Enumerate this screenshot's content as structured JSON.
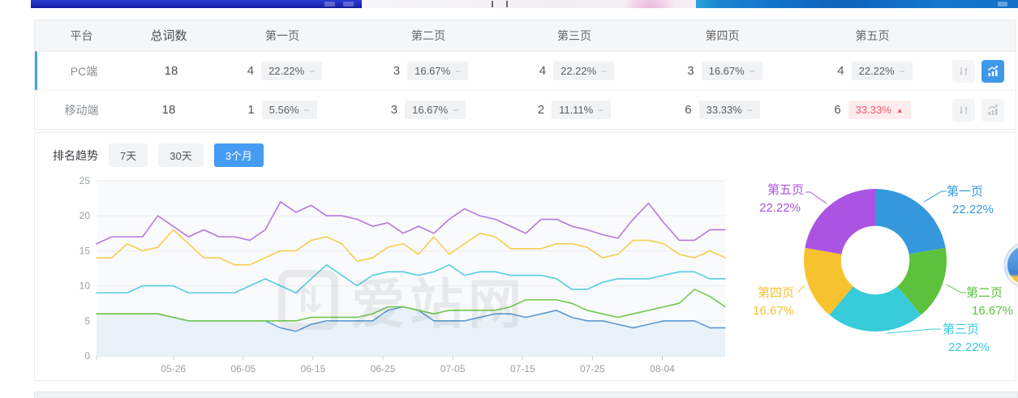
{
  "colors": {
    "accent_blue": "#3f97ea",
    "tab_active_blue": "#469cf3",
    "selected_row_border": "#49a2ee",
    "up_red": "#f4586a",
    "badge_gray_bg": "#f1f2f4",
    "badge_red_bg": "#fdecee"
  },
  "table": {
    "headers": [
      "平台",
      "总词数",
      "第一页",
      "第二页",
      "第三页",
      "第四页",
      "第五页"
    ],
    "icons": {
      "flat_glyph": "−",
      "up_glyph": "▲"
    },
    "rows": [
      {
        "platform": "PC端",
        "total": "18",
        "selected": true,
        "trend_active": true,
        "pages": [
          {
            "count": "4",
            "pct": "22.22%",
            "trend": "flat"
          },
          {
            "count": "3",
            "pct": "16.67%",
            "trend": "flat"
          },
          {
            "count": "4",
            "pct": "22.22%",
            "trend": "flat"
          },
          {
            "count": "3",
            "pct": "16.67%",
            "trend": "flat"
          },
          {
            "count": "4",
            "pct": "22.22%",
            "trend": "flat"
          }
        ]
      },
      {
        "platform": "移动端",
        "total": "18",
        "selected": false,
        "trend_active": false,
        "pages": [
          {
            "count": "1",
            "pct": "5.56%",
            "trend": "flat"
          },
          {
            "count": "3",
            "pct": "16.67%",
            "trend": "flat"
          },
          {
            "count": "2",
            "pct": "11.11%",
            "trend": "flat"
          },
          {
            "count": "6",
            "pct": "33.33%",
            "trend": "flat"
          },
          {
            "count": "6",
            "pct": "33.33%",
            "trend": "up"
          }
        ]
      }
    ]
  },
  "trend_section": {
    "label": "排名趋势",
    "tabs": [
      {
        "label": "7天",
        "active": false
      },
      {
        "label": "30天",
        "active": false
      },
      {
        "label": "3个月",
        "active": true
      }
    ]
  },
  "watermark": {
    "text": "爱站网",
    "icon": "aizhan-updown-logo",
    "glyph": "⇅"
  },
  "chart_data": {
    "line": {
      "type": "line",
      "title": "排名趋势（3个月）",
      "ylim": [
        0,
        25
      ],
      "yticks": [
        0,
        5,
        10,
        15,
        20,
        25
      ],
      "days_total": 90,
      "xticks": [
        {
          "label": "05-26",
          "day": 11
        },
        {
          "label": "06-05",
          "day": 21
        },
        {
          "label": "06-15",
          "day": 31
        },
        {
          "label": "06-25",
          "day": 41
        },
        {
          "label": "07-05",
          "day": 51
        },
        {
          "label": "07-15",
          "day": 61
        },
        {
          "label": "07-25",
          "day": 71
        },
        {
          "label": "08-04",
          "day": 81
        }
      ],
      "grid": true,
      "legend": "none",
      "series": [
        {
          "name": "第一页",
          "color": "#5b9bd5",
          "values": [
            6,
            6,
            6,
            6,
            6,
            5.5,
            5,
            5,
            5,
            5,
            5,
            5,
            4,
            3.5,
            4.5,
            5,
            5,
            5,
            5,
            6.5,
            7,
            6.5,
            5,
            5,
            5,
            5.5,
            6,
            6,
            5.5,
            6,
            6.5,
            5.5,
            5,
            5,
            4.5,
            4,
            4.5,
            5,
            5,
            5,
            4,
            4
          ]
        },
        {
          "name": "第二页",
          "color": "#72c94e",
          "values": [
            6,
            6,
            6,
            6,
            6,
            5.5,
            5,
            5,
            5,
            5,
            5,
            5,
            5,
            5,
            5.5,
            5.5,
            5.5,
            5.5,
            6,
            7,
            7,
            6.5,
            6,
            6.5,
            6.5,
            6.5,
            6.5,
            7,
            8,
            8,
            8,
            7.5,
            6.5,
            6,
            5.5,
            6,
            6.5,
            7,
            7.5,
            9.5,
            8.5,
            7
          ]
        },
        {
          "name": "第三页",
          "color": "#56cde0",
          "values": [
            9,
            9,
            9,
            10,
            10,
            10,
            9,
            9,
            9,
            9,
            10,
            11,
            10,
            9,
            11,
            13,
            11.5,
            10,
            11.5,
            12,
            12,
            11.5,
            12,
            13,
            11.5,
            12,
            12,
            11.5,
            11.5,
            11.5,
            11,
            9.5,
            9.5,
            10.5,
            11,
            11,
            11,
            11.5,
            12,
            12,
            11,
            11
          ]
        },
        {
          "name": "第四页",
          "color": "#f5ce4f",
          "values": [
            14,
            14,
            16,
            15,
            15.5,
            18,
            16,
            14,
            14,
            13,
            13,
            14,
            15,
            15,
            16.5,
            17,
            16,
            13.5,
            14,
            15.5,
            16,
            14.5,
            17,
            14.5,
            16,
            17.5,
            17,
            15.3,
            15.3,
            15.3,
            16,
            16,
            15.5,
            14,
            14.5,
            16.5,
            16.5,
            16,
            14.5,
            14,
            15,
            14
          ]
        },
        {
          "name": "第五页",
          "color": "#b678e0",
          "values": [
            16,
            17,
            17,
            17,
            20,
            18.5,
            17,
            18,
            17,
            17,
            16.5,
            18,
            22,
            20.5,
            21.5,
            20,
            20,
            19.5,
            18.5,
            19,
            17.5,
            18.5,
            17.5,
            19.5,
            21,
            20,
            19.5,
            18.5,
            17.5,
            19.5,
            19.5,
            18.5,
            18,
            17.3,
            16.8,
            19.5,
            21.8,
            19,
            16.5,
            16.5,
            18,
            18
          ]
        }
      ]
    },
    "donut": {
      "type": "pie",
      "inner_radius_ratio": 0.48,
      "slices": [
        {
          "label": "第一页",
          "pct": 22.22,
          "text": "22.22%",
          "color": "#3598dc"
        },
        {
          "label": "第二页",
          "pct": 16.67,
          "text": "16.67%",
          "color": "#5cc23c"
        },
        {
          "label": "第三页",
          "pct": 22.22,
          "text": "22.22%",
          "color": "#38cbd9"
        },
        {
          "label": "第四页",
          "pct": 16.67,
          "text": "16.67%",
          "color": "#f6c22e"
        },
        {
          "label": "第五页",
          "pct": 22.22,
          "text": "22.22%",
          "color": "#ab53e3"
        }
      ]
    }
  }
}
